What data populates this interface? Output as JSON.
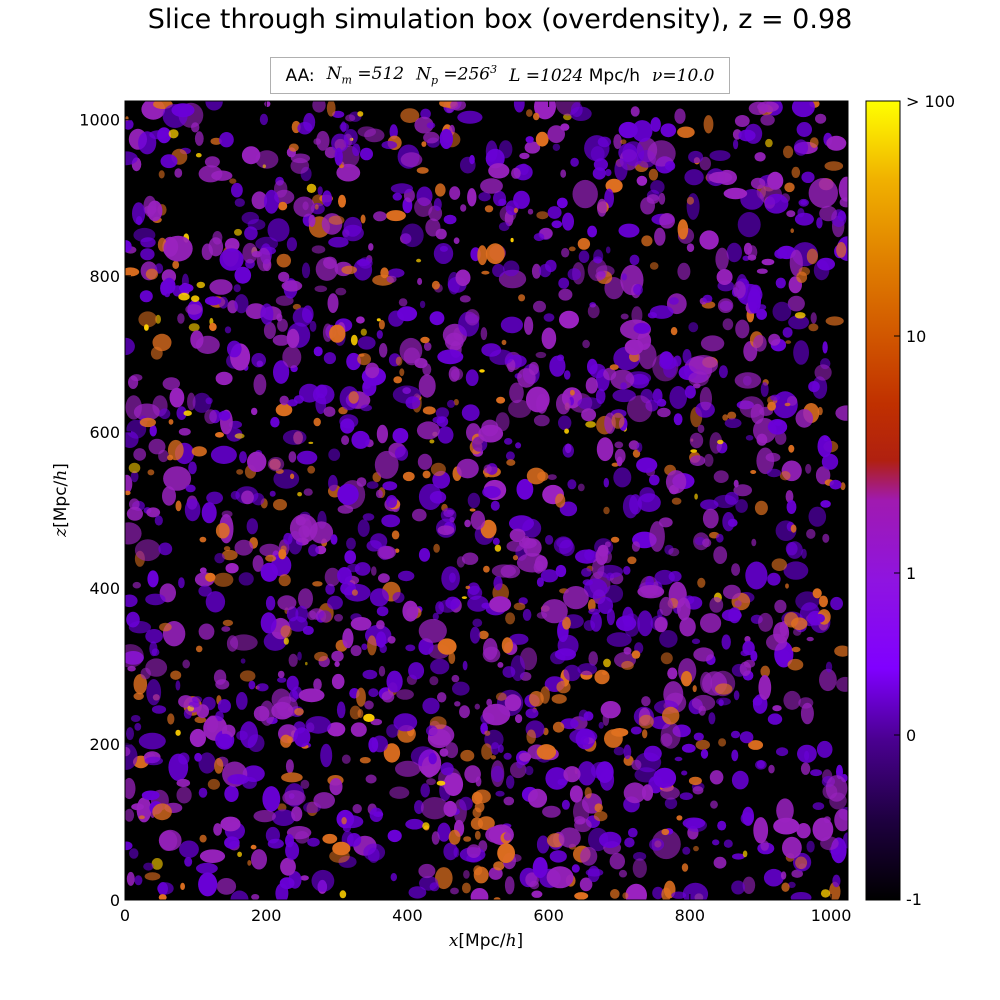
{
  "chart_data": {
    "type": "heatmap",
    "title": "Slice through simulation box (overdensity), z = 0.98",
    "info_box": {
      "prefix": "AA:",
      "Nm_symbol": "N",
      "Nm_sub": "m",
      "Nm_value": "512",
      "Np_symbol": "N",
      "Np_sub": "p",
      "Np_value": "256",
      "Np_exp": "3",
      "L_symbol": "L",
      "L_value": "1024",
      "L_unit": "Mpc/h",
      "nu_symbol": "ν",
      "nu_value": "10.0"
    },
    "xlabel_var": "x",
    "xlabel_unit": "Mpc/",
    "xlabel_h": "h",
    "ylabel_var": "z",
    "ylabel_unit": "Mpc/",
    "ylabel_h": "h",
    "xlim": [
      0,
      1024
    ],
    "ylim": [
      0,
      1024
    ],
    "x_ticks": [
      0,
      200,
      400,
      600,
      800,
      1000
    ],
    "y_ticks": [
      0,
      200,
      400,
      600,
      800,
      1000
    ],
    "colorbar": {
      "scale": "symlog-like",
      "tick_labels": [
        "-1",
        "0",
        "1",
        "10",
        "> 100"
      ],
      "tick_values": [
        -1,
        0,
        1,
        10,
        100
      ],
      "colormap": [
        "#000000",
        "#2a0050",
        "#5a00b0",
        "#8a00ff",
        "#9b1ec8",
        "#b01f1f",
        "#cc3300",
        "#e06a00",
        "#f0a000",
        "#ffff00"
      ]
    },
    "field_description_colors": {
      "void": "#000000",
      "low": "#6a00d8",
      "mid": "#9a22c0",
      "high": "#e07020",
      "peak": "#ffd000"
    }
  }
}
